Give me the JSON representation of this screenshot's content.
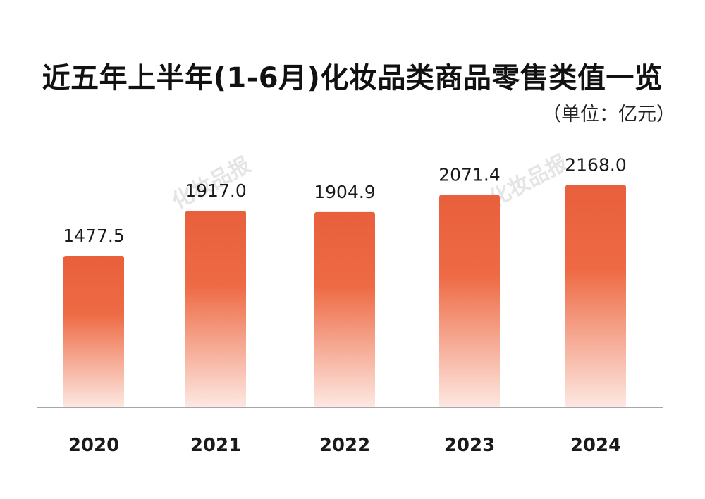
{
  "chart_data": {
    "type": "bar",
    "title": "近五年上半年(1-6月)化妆品类商品零售类值一览",
    "unit_note": "（单位：亿元）",
    "categories": [
      "2020",
      "2021",
      "2022",
      "2023",
      "2024"
    ],
    "values": [
      1477.5,
      1917.0,
      1904.9,
      2071.4,
      2168.0
    ],
    "value_labels": [
      "1477.5",
      "1917.0",
      "1904.9",
      "2071.4",
      "2168.0"
    ],
    "xlabel": "",
    "ylabel": "",
    "ylim": [
      0,
      2500
    ],
    "grid": false,
    "legend": "none",
    "colors": {
      "bar_top": "#e8603c",
      "bar_mid": "#ee6a44",
      "bar_bottom": "#fde8e2",
      "axis": "#888888"
    }
  },
  "watermark": {
    "text": "化妆品报"
  }
}
